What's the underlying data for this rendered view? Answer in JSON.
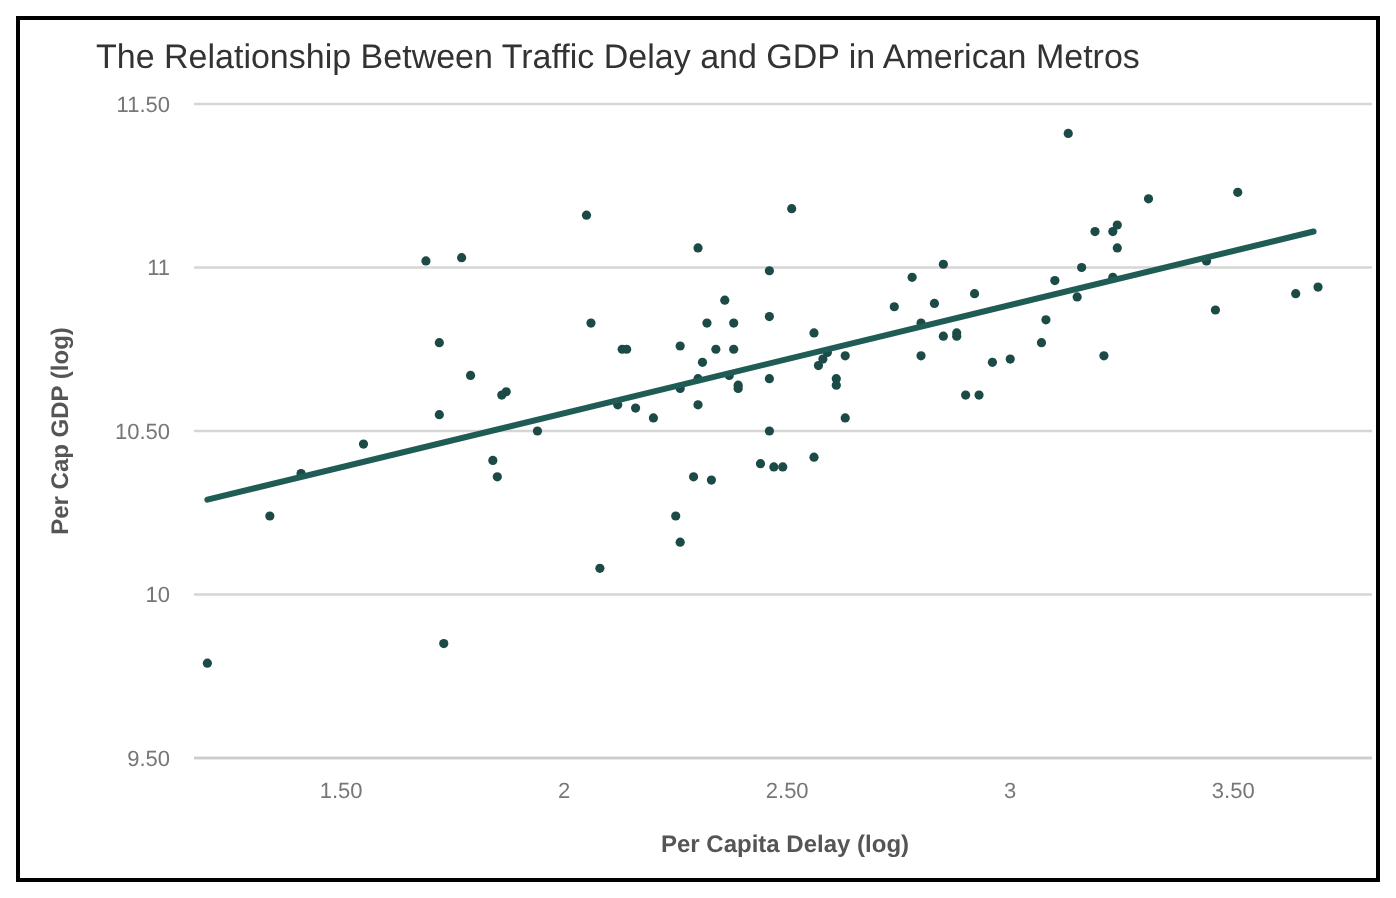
{
  "chart_data": {
    "type": "scatter",
    "title": "The Relationship Between Traffic Delay and GDP in American Metros",
    "xlabel": "Per Capita Delay (log)",
    "ylabel": "Per Cap GDP (log)",
    "xlim": [
      1.17,
      3.82
    ],
    "ylim": [
      9.5,
      11.5
    ],
    "xticks": [
      {
        "value": 1.5,
        "label": "1.50"
      },
      2,
      {
        "value": 2.5,
        "label": "2.50"
      },
      3,
      {
        "value": 3.5,
        "label": "3.50"
      }
    ],
    "yticks": [
      {
        "value": 9.5,
        "label": "9.50"
      },
      10,
      {
        "value": 10.5,
        "label": "10.50"
      },
      11,
      {
        "value": 11.5,
        "label": "11.50"
      }
    ],
    "grid": "y",
    "marker": "circle",
    "series": [
      {
        "type": "scatter",
        "color": "#1b4a47",
        "x": [
          2.05,
          1.69,
          1.77,
          2.06,
          1.72,
          1.79,
          1.86,
          1.87,
          1.72,
          1.94,
          1.55,
          1.41,
          1.84,
          1.85,
          1.34,
          2.08,
          1.73,
          1.2,
          2.51,
          2.3,
          2.46,
          2.78,
          2.85,
          2.36,
          2.74,
          2.83,
          2.92,
          2.32,
          2.38,
          2.46,
          2.56,
          2.8,
          2.85,
          2.88,
          2.88,
          2.13,
          2.14,
          2.26,
          2.34,
          2.38,
          2.59,
          2.58,
          2.57,
          2.63,
          2.8,
          2.96,
          2.31,
          2.26,
          2.3,
          2.37,
          2.39,
          2.39,
          2.46,
          2.61,
          2.61,
          2.12,
          2.16,
          2.2,
          2.3,
          2.63,
          2.9,
          2.93,
          2.46,
          2.56,
          2.44,
          2.47,
          2.49,
          2.29,
          2.33,
          2.25,
          2.26,
          3.13,
          3.31,
          3.51,
          3.19,
          3.23,
          3.24,
          3.24,
          3.16,
          3.1,
          3.15,
          3.23,
          3.44,
          3.64,
          3.69,
          3.46,
          3.08,
          3.07,
          3.0,
          3.21
        ],
        "values": [
          11.16,
          11.02,
          11.03,
          10.83,
          10.77,
          10.67,
          10.61,
          10.62,
          10.55,
          10.5,
          10.46,
          10.37,
          10.41,
          10.36,
          10.24,
          10.08,
          9.85,
          9.79,
          11.18,
          11.06,
          10.99,
          10.97,
          11.01,
          10.9,
          10.88,
          10.89,
          10.92,
          10.83,
          10.83,
          10.85,
          10.8,
          10.83,
          10.79,
          10.79,
          10.8,
          10.75,
          10.75,
          10.76,
          10.75,
          10.75,
          10.74,
          10.72,
          10.7,
          10.73,
          10.73,
          10.71,
          10.71,
          10.63,
          10.66,
          10.67,
          10.64,
          10.63,
          10.66,
          10.66,
          10.64,
          10.58,
          10.57,
          10.54,
          10.58,
          10.54,
          10.61,
          10.61,
          10.5,
          10.42,
          10.4,
          10.39,
          10.39,
          10.36,
          10.35,
          10.24,
          10.16,
          11.41,
          11.21,
          11.23,
          11.11,
          11.11,
          11.13,
          11.06,
          11.0,
          10.96,
          10.91,
          10.97,
          11.02,
          10.92,
          10.94,
          10.87,
          10.84,
          10.77,
          10.72,
          10.73
        ]
      },
      {
        "type": "line",
        "color": "#1e5c55",
        "marker": "none",
        "x": [
          1.2,
          3.68
        ],
        "values": [
          10.29,
          11.11
        ]
      }
    ]
  }
}
